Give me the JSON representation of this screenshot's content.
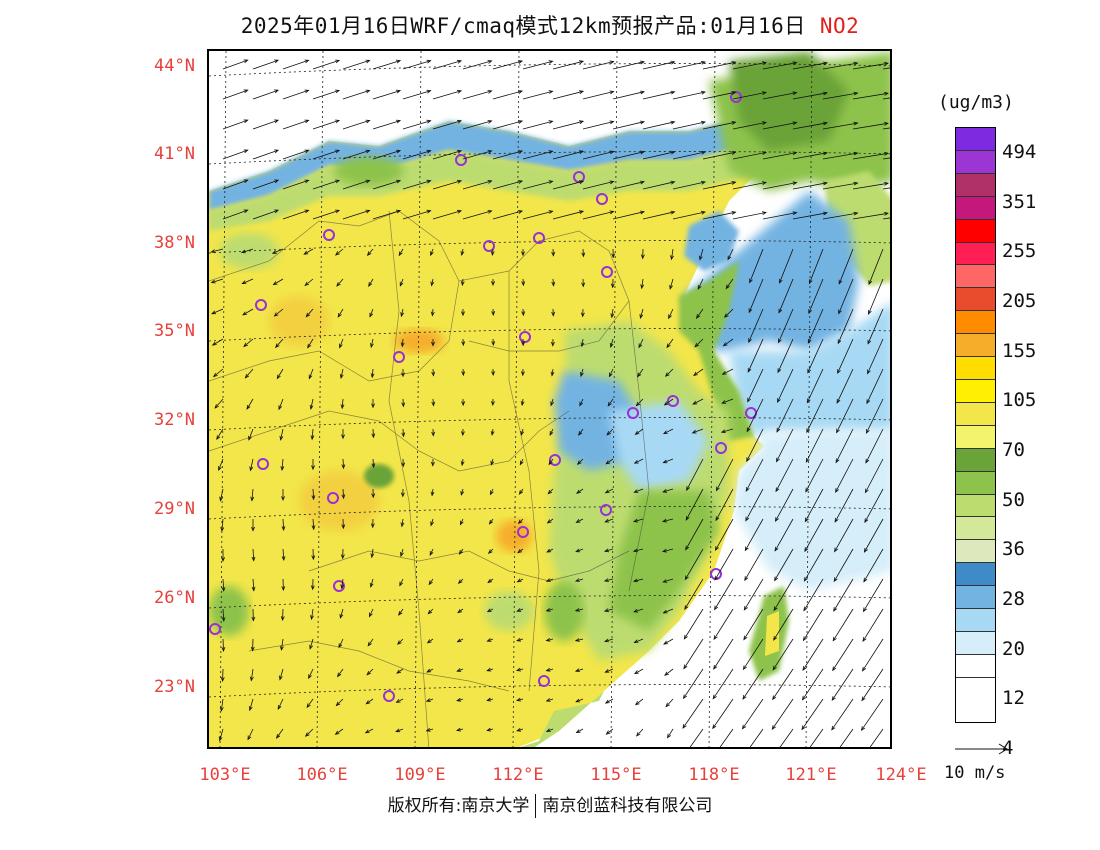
{
  "header": {
    "title": "2025年01月16日WRF/cmaq模式12km预报产品:01月16日",
    "pollutant": "NO2"
  },
  "map": {
    "lat_labels": [
      "44°N",
      "41°N",
      "38°N",
      "35°N",
      "32°N",
      "29°N",
      "26°N",
      "23°N"
    ],
    "lon_labels": [
      "103°E",
      "106°E",
      "109°E",
      "112°E",
      "115°E",
      "118°E",
      "121°E",
      "124°E"
    ],
    "extent": {
      "lon": [
        103,
        124
      ],
      "lat": [
        21,
        44.5
      ]
    },
    "colors": {
      "land_base": "#f2e64a",
      "sea": "#ffffff",
      "labels": "#e8403a"
    },
    "city_marker_color": "#9a2fd6"
  },
  "legend": {
    "unit": "(ug/m3)",
    "colors": [
      "#7d2ae0",
      "#9b35d3",
      "#b03068",
      "#c4187c",
      "#ff0000",
      "#ff1f55",
      "#ff6766",
      "#e84c2c",
      "#ff8c00",
      "#f6ad29",
      "#ffdd00",
      "#ffef00",
      "#f2e64a",
      "#f3f46c",
      "#6aa337",
      "#8dc34c",
      "#bddc70",
      "#d4e89a",
      "#dde8bc",
      "#3f8bc7",
      "#73b3e2",
      "#a8d9f4",
      "#d6eef9",
      "#ffffff"
    ],
    "labels": [
      "494",
      "351",
      "255",
      "205",
      "155",
      "105",
      "70",
      "50",
      "36",
      "28",
      "20",
      "12",
      "4"
    ]
  },
  "wind_reference": {
    "label": "10 m/s"
  },
  "footer": {
    "left": "版权所有:南京大学",
    "right": "南京创蓝科技有限公司"
  }
}
